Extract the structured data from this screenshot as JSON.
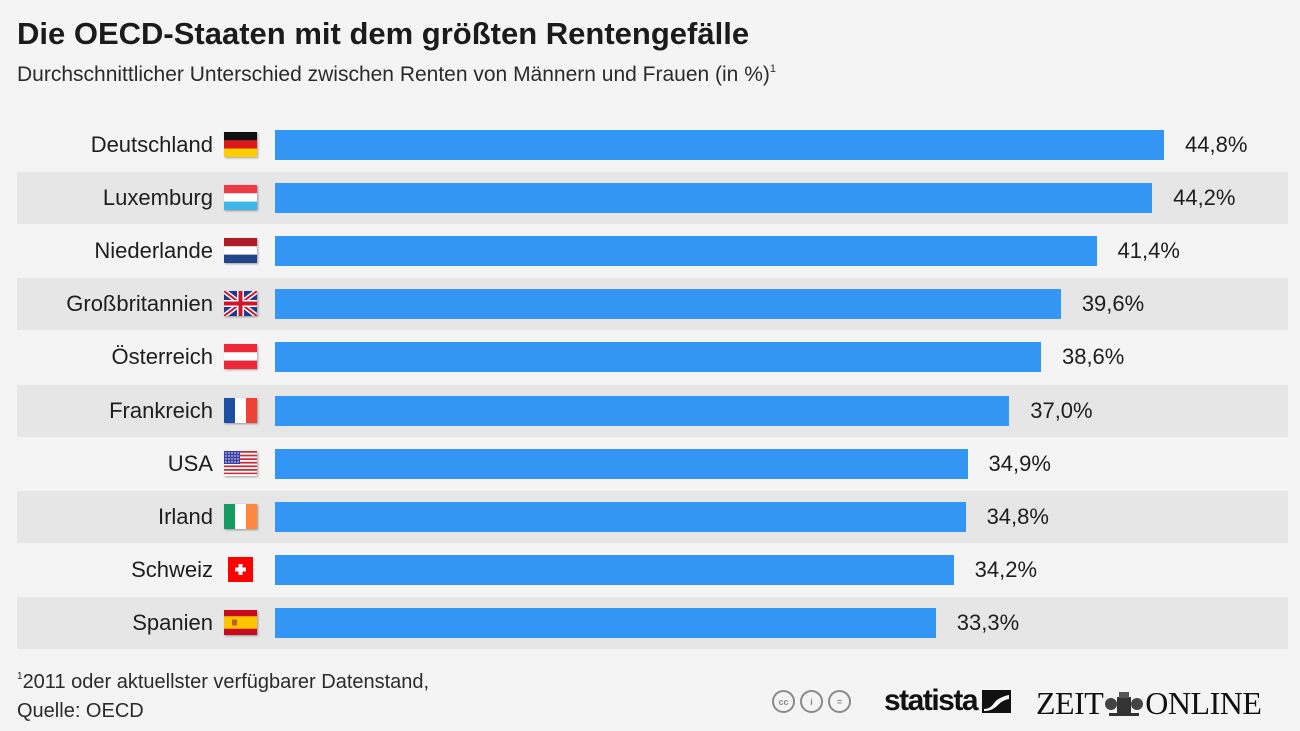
{
  "header": {
    "title": "Die OECD-Staaten mit dem größten Rentengefälle",
    "subtitle": "Durchschnittlicher Unterschied zwischen Renten von Männern und Frauen (in %)",
    "subtitle_footnote_marker": "1"
  },
  "chart_data": {
    "type": "bar",
    "orientation": "horizontal",
    "title": "Die OECD-Staaten mit dem größten Rentengefälle",
    "subtitle": "Durchschnittlicher Unterschied zwischen Renten von Männern und Frauen (in %)",
    "xlabel": "",
    "ylabel": "",
    "unit": "%",
    "grid": false,
    "bar_color": "#3396f5",
    "categories": [
      "Deutschland",
      "Luxemburg",
      "Niederlande",
      "Großbritannien",
      "Österreich",
      "Frankreich",
      "USA",
      "Irland",
      "Schweiz",
      "Spanien"
    ],
    "values": [
      44.8,
      44.2,
      41.4,
      39.6,
      38.6,
      37.0,
      34.9,
      34.8,
      34.2,
      33.3
    ],
    "value_labels": [
      "44,8%",
      "44,2%",
      "41,4%",
      "39,6%",
      "38,6%",
      "37,0%",
      "34,9%",
      "34,8%",
      "34,2%",
      "33,3%"
    ],
    "flags": [
      "germany-flag",
      "luxembourg-flag",
      "netherlands-flag",
      "uk-flag",
      "austria-flag",
      "france-flag",
      "usa-flag",
      "ireland-flag",
      "switzerland-flag",
      "spain-flag"
    ],
    "xlim": [
      0,
      44.8
    ]
  },
  "footer": {
    "footnote_marker": "1",
    "footnote_line1": "2011 oder aktuellster verfügbarer Datenstand,",
    "footnote_line2": "Quelle: OECD",
    "license_icons": [
      {
        "name": "cc-icon",
        "glyph": "cc"
      },
      {
        "name": "attribution-icon",
        "glyph": "i"
      },
      {
        "name": "no-derivatives-icon",
        "glyph": "="
      }
    ],
    "statista_label": "statista",
    "zeit_left": "ZEIT",
    "zeit_right": "ONLINE"
  },
  "colors": {
    "background": "#f4f4f4",
    "band": "#e6e6e6",
    "bar": "#3396f5"
  }
}
